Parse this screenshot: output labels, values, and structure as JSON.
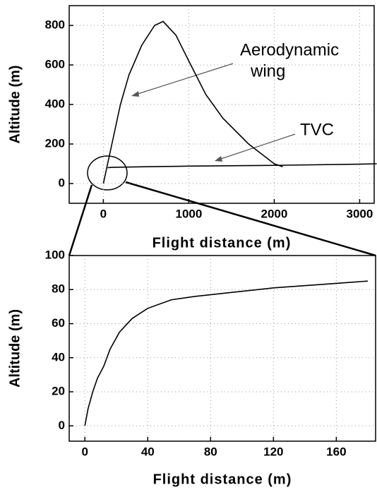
{
  "chart_data": [
    {
      "type": "line",
      "xlabel": "Flight distance (m)",
      "ylabel": "Altitude (m)",
      "xlim": [
        -400,
        3170
      ],
      "ylim": [
        -100,
        900
      ],
      "xticks": [
        0,
        1000,
        2000,
        3000
      ],
      "yticks": [
        0,
        200,
        400,
        600,
        800
      ],
      "grid": true,
      "annotations": [
        "Aerodynamic",
        "wing",
        "TVC"
      ],
      "series": [
        {
          "color": "#000000",
          "x": [
            0,
            50,
            100,
            200,
            300,
            450,
            600,
            700,
            850,
            1000,
            1200,
            1400,
            1700,
            2000,
            2100
          ],
          "values": [
            0,
            100,
            200,
            400,
            550,
            700,
            800,
            820,
            750,
            620,
            450,
            330,
            200,
            100,
            85
          ]
        },
        {
          "color": "#000000",
          "x": [
            50,
            100,
            500,
            1000,
            2000,
            3000,
            3200
          ],
          "values": [
            80,
            82,
            85,
            88,
            92,
            98,
            100
          ]
        }
      ]
    },
    {
      "type": "line",
      "xlabel": "Flight distance (m)",
      "ylabel": "Altitude (m)",
      "xlim": [
        -10,
        185
      ],
      "ylim": [
        -9,
        100
      ],
      "xticks": [
        0,
        40,
        80,
        120,
        160
      ],
      "yticks": [
        0,
        20,
        40,
        60,
        80,
        100
      ],
      "grid": true,
      "series": [
        {
          "color": "#000000",
          "x": [
            0,
            2,
            5,
            8,
            12,
            16,
            22,
            30,
            40,
            55,
            70,
            90,
            120,
            150,
            180
          ],
          "values": [
            0,
            10,
            20,
            28,
            35,
            45,
            55,
            63,
            69,
            74,
            76,
            78,
            81,
            83,
            85
          ]
        }
      ]
    }
  ]
}
